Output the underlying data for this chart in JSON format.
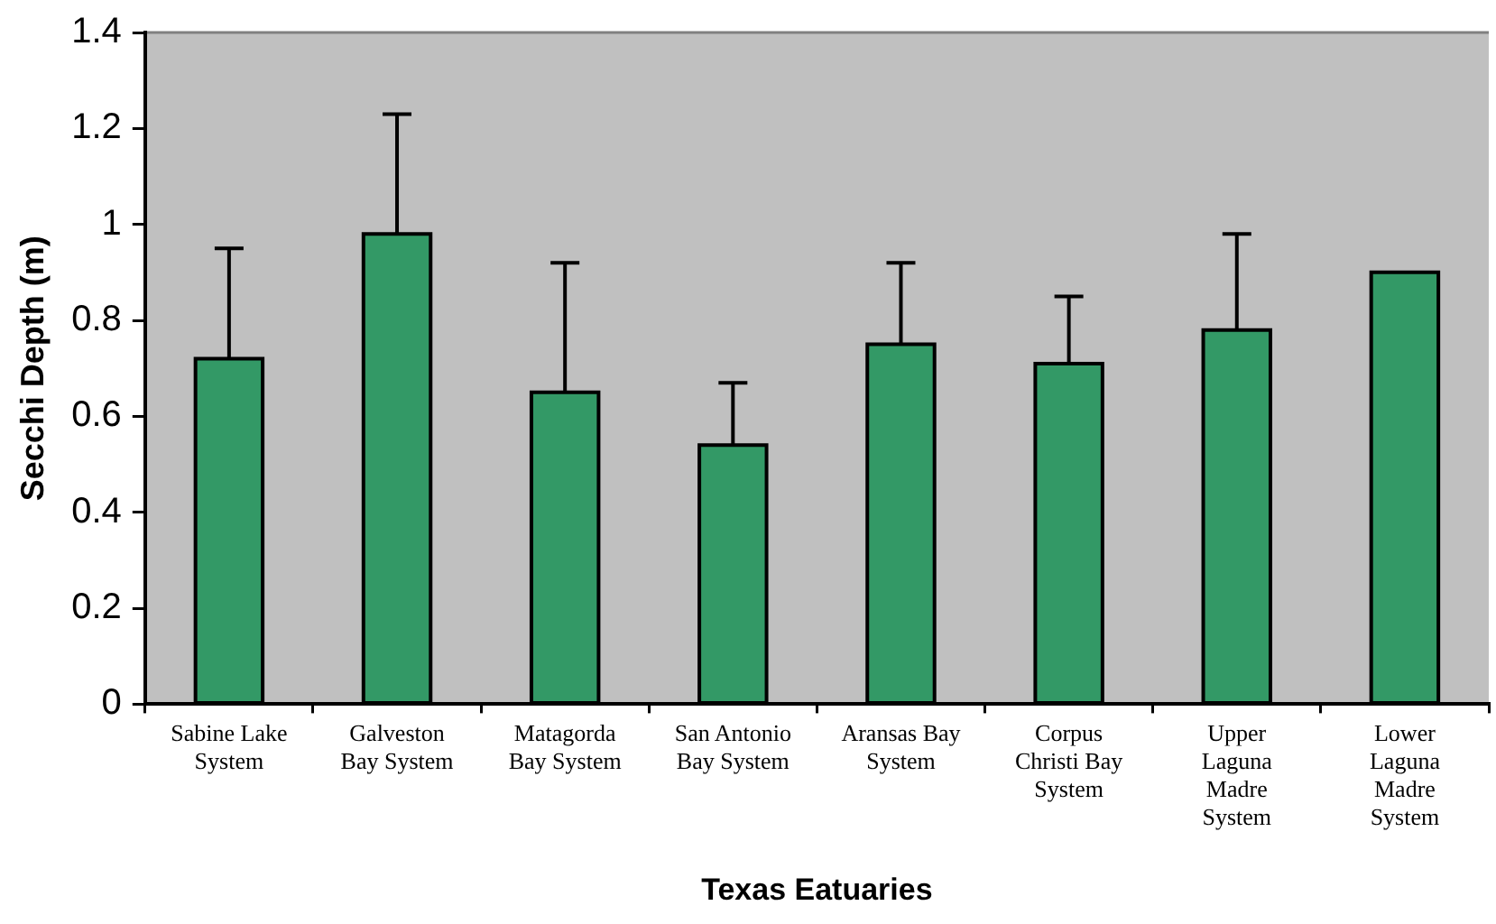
{
  "chart_data": {
    "type": "bar",
    "xlabel": "Texas Eatuaries",
    "ylabel": "Secchi Depth (m)",
    "categories": [
      "Sabine Lake System",
      "Galveston Bay System",
      "Matagorda Bay System",
      "San Antonio Bay System",
      "Aransas Bay System",
      "Corpus Christi Bay System",
      "Upper Laguna Madre System",
      "Lower Laguna Madre System"
    ],
    "values": [
      0.72,
      0.98,
      0.65,
      0.54,
      0.75,
      0.71,
      0.78,
      0.9
    ],
    "errors": [
      [
        0.72,
        0.95
      ],
      [
        0.98,
        1.23
      ],
      [
        0.65,
        0.92
      ],
      [
        0.54,
        0.67
      ],
      [
        0.75,
        0.92
      ],
      [
        0.71,
        0.85
      ],
      [
        0.78,
        0.98
      ],
      null
    ],
    "color": "#339966",
    "ylim": [
      0,
      1.4
    ],
    "yticks": [
      0,
      0.2,
      0.4,
      0.6,
      0.8,
      1,
      1.2,
      1.4
    ],
    "grid": false,
    "legend": false
  }
}
